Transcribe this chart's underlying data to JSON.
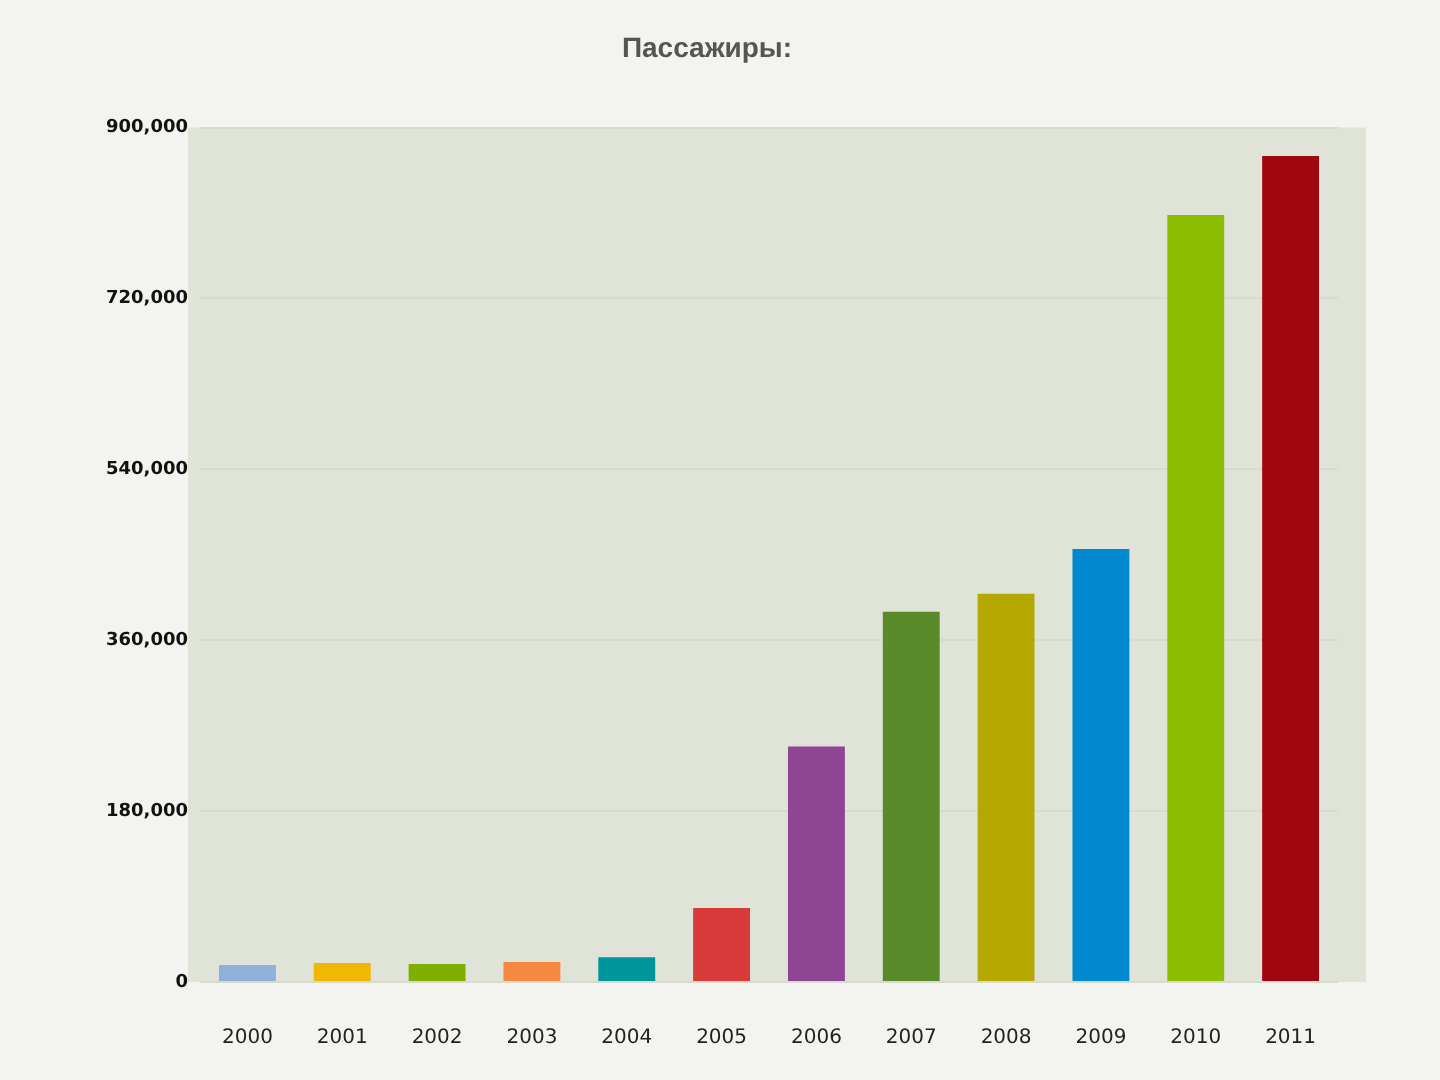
{
  "chart_data": {
    "type": "bar",
    "title": "Пассажиры:",
    "categories": [
      "2000",
      "2001",
      "2002",
      "2003",
      "2004",
      "2005",
      "2006",
      "2007",
      "2008",
      "2009",
      "2010",
      "2011"
    ],
    "values": [
      18000,
      20000,
      19000,
      21000,
      26000,
      78000,
      248000,
      390000,
      409000,
      456000,
      808000,
      870000
    ],
    "colors": [
      "#8fb0d8",
      "#f0b800",
      "#7fb000",
      "#f58a40",
      "#00959a",
      "#d83a3a",
      "#8e4593",
      "#5a8a2a",
      "#b5a800",
      "#0088d0",
      "#8cbd00",
      "#a0060e"
    ],
    "ylim": [
      0,
      900000
    ],
    "yticks": [
      0,
      {
        "value": 180000,
        "label": "180,000"
      },
      {
        "value": 360000,
        "label": "360,000"
      },
      {
        "value": 540000,
        "label": "540,000"
      },
      {
        "value": 720000,
        "label": "720,000"
      },
      {
        "value": 900000,
        "label": "900,000"
      }
    ],
    "grid": "y"
  }
}
